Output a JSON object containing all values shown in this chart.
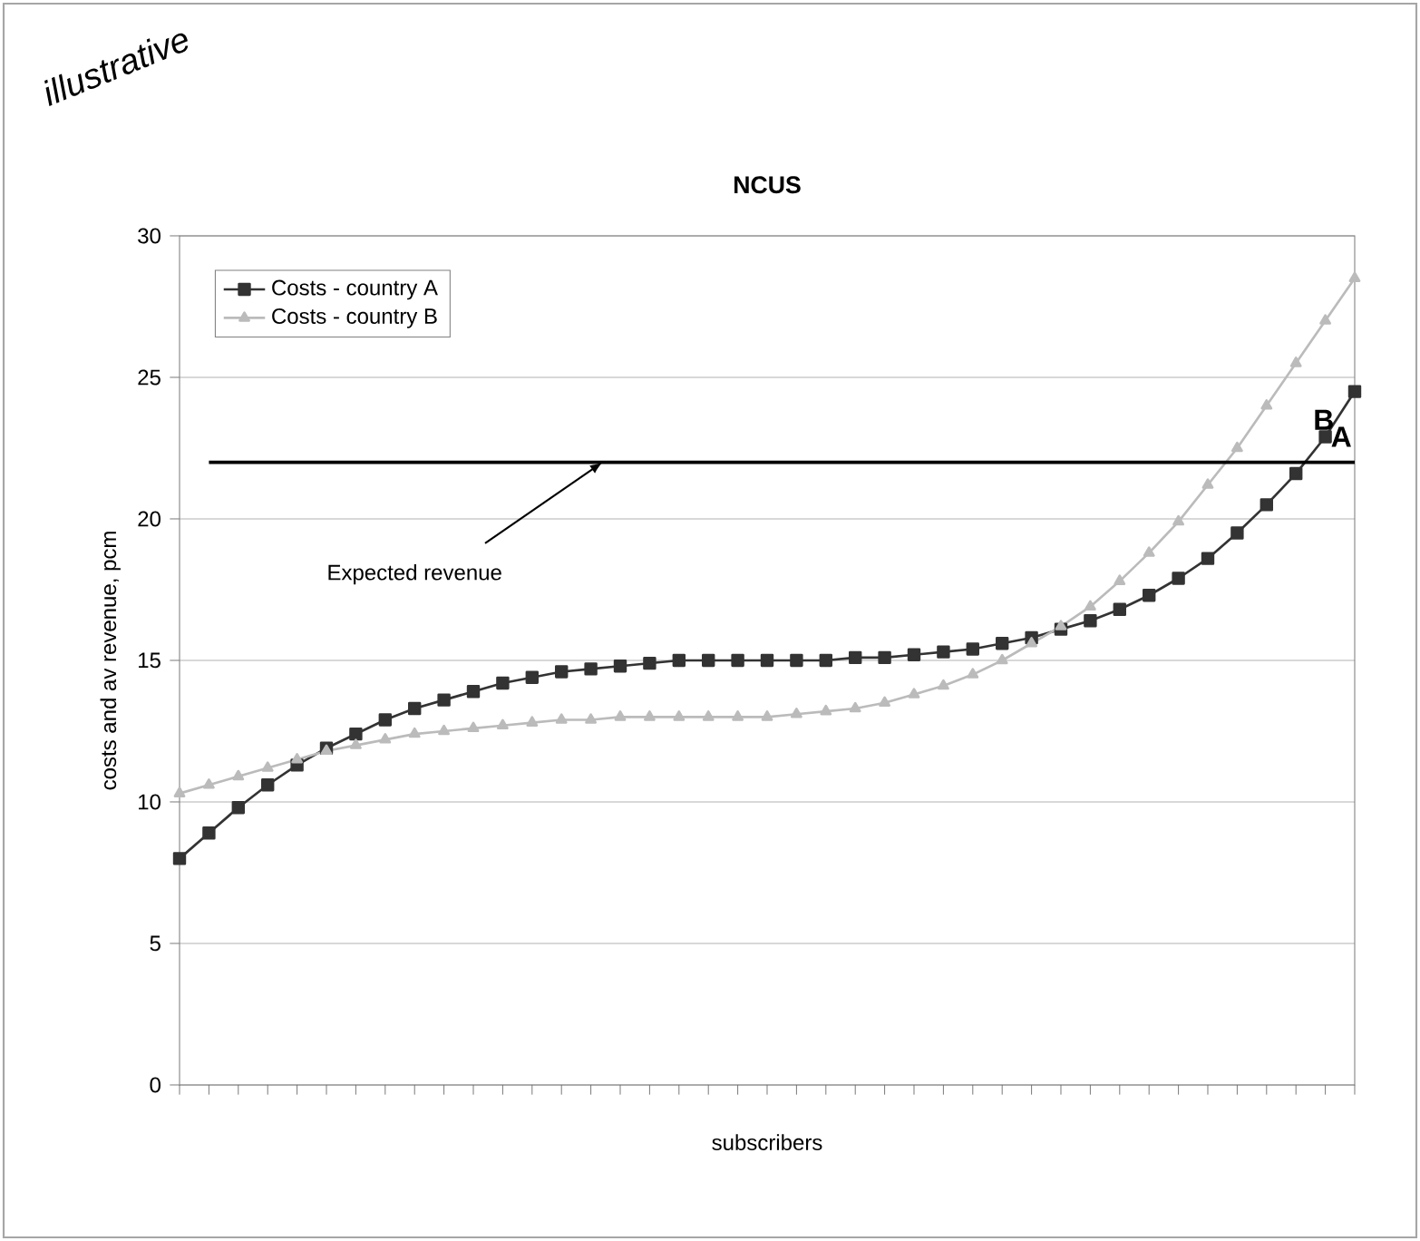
{
  "chart_data": {
    "type": "line",
    "title": "NCUS",
    "xlabel": "subscribers",
    "ylabel": "costs and av revenue, pcm",
    "categories": [
      null,
      null,
      null,
      null,
      null,
      null,
      null,
      null,
      null,
      null,
      null,
      null,
      null,
      null,
      null,
      null,
      null,
      null,
      null,
      null,
      null,
      null,
      null,
      null,
      null,
      null,
      null,
      null,
      null,
      null,
      null,
      null,
      null,
      null,
      null,
      null,
      null,
      null,
      null,
      null,
      null
    ],
    "series": [
      {
        "name": "Costs - country A",
        "color": "#333333",
        "marker": "square",
        "values": [
          8.0,
          8.9,
          9.8,
          10.6,
          11.3,
          11.9,
          12.4,
          12.9,
          13.3,
          13.6,
          13.9,
          14.2,
          14.4,
          14.6,
          14.7,
          14.8,
          14.9,
          15.0,
          15.0,
          15.0,
          15.0,
          15.0,
          15.0,
          15.1,
          15.1,
          15.2,
          15.3,
          15.4,
          15.6,
          15.8,
          16.1,
          16.4,
          16.8,
          17.3,
          17.9,
          18.6,
          19.5,
          20.5,
          21.6,
          22.9,
          24.5
        ]
      },
      {
        "name": "Costs - country B",
        "color": "#bbbbbb",
        "marker": "triangle",
        "values": [
          10.3,
          10.6,
          10.9,
          11.2,
          11.5,
          11.8,
          12.0,
          12.2,
          12.4,
          12.5,
          12.6,
          12.7,
          12.8,
          12.9,
          12.9,
          13.0,
          13.0,
          13.0,
          13.0,
          13.0,
          13.0,
          13.1,
          13.2,
          13.3,
          13.5,
          13.8,
          14.1,
          14.5,
          15.0,
          15.6,
          16.2,
          16.9,
          17.8,
          18.8,
          19.9,
          21.2,
          22.5,
          24.0,
          25.5,
          27.0,
          28.5
        ]
      }
    ],
    "ylim": [
      0,
      30
    ],
    "yticks": [
      0,
      5,
      10,
      15,
      20,
      25,
      30
    ],
    "grid": "y",
    "legend": "top left",
    "tick_labels": "y",
    "line_style": "solid",
    "ref_lines": [
      {
        "axis": "y",
        "value": 22,
        "label": "Expected revenue",
        "color": "#000000"
      }
    ],
    "annotations": [
      "B",
      "A",
      "illustrative"
    ]
  }
}
